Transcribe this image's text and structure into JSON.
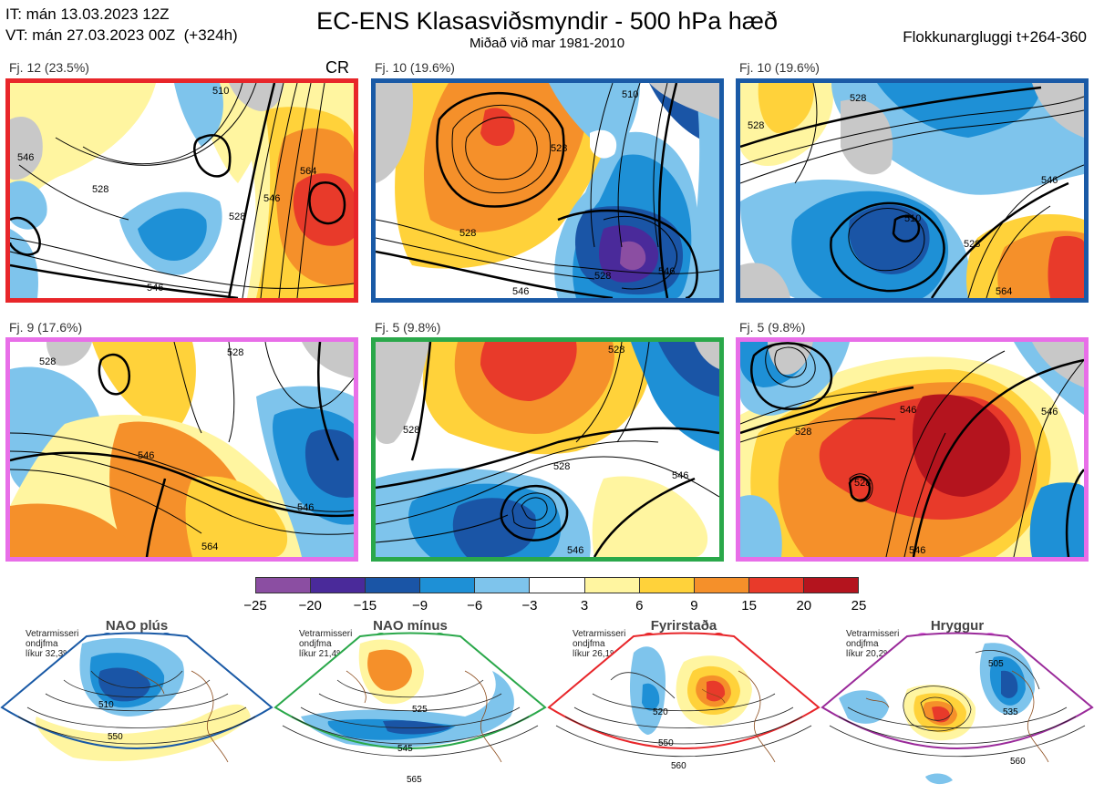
{
  "header": {
    "it_line": "IT: mán 13.03.2023 12Z",
    "vt_line": "VT: mán 27.03.2023 00Z  (+324h)",
    "title": "EC-ENS Klasasviðsmyndir - 500 hPa hæð",
    "subtitle": "Miðað við mar 1981-2010",
    "window": "Flokkunargluggi t+264-360"
  },
  "clusters": [
    {
      "label": "Fj. 12 (23.5%)",
      "tag": "CR",
      "border": "#e8262a",
      "contours": [
        "546",
        "528",
        "510",
        "564",
        "546",
        "528",
        "546"
      ]
    },
    {
      "label": "Fj. 10 (19.6%)",
      "tag": "",
      "border": "#1a5aa6",
      "contours": [
        "510",
        "528",
        "528",
        "546",
        "528",
        "546"
      ]
    },
    {
      "label": "Fj. 10 (19.6%)",
      "tag": "",
      "border": "#1a5aa6",
      "contours": [
        "528",
        "510",
        "546",
        "528",
        "564",
        "528"
      ]
    },
    {
      "label": "Fj. 9 (17.6%)",
      "tag": "",
      "border": "#e86ee8",
      "contours": [
        "528",
        "546",
        "546",
        "564",
        "528"
      ]
    },
    {
      "label": "Fj. 5 (9.8%)",
      "tag": "",
      "border": "#2aa84a",
      "contours": [
        "528",
        "528",
        "546",
        "546",
        "528"
      ]
    },
    {
      "label": "Fj. 5 (9.8%)",
      "tag": "",
      "border": "#e86ee8",
      "contours": [
        "546",
        "528",
        "528",
        "546",
        "546"
      ]
    }
  ],
  "legend": {
    "colors": [
      "#8b4ea2",
      "#4a2a9a",
      "#1a55a6",
      "#1e90d6",
      "#7ec4ec",
      "#ffffff",
      "#fff5a0",
      "#ffd23a",
      "#f5902a",
      "#e83a2a",
      "#b4141e"
    ],
    "ticks": [
      "−25",
      "−20",
      "−15",
      "−9",
      "−6",
      "−3",
      "3",
      "6",
      "9",
      "15",
      "20",
      "25"
    ]
  },
  "regimes": [
    {
      "name": "NAO plús",
      "prob": [
        "Vetrarmisseri",
        "ondjfma",
        "líkur 32,3%"
      ],
      "color": "#1a5aa6",
      "contours": [
        "510",
        "550"
      ]
    },
    {
      "name": "NAO mínus",
      "prob": [
        "Vetrarmisseri",
        "ondjfma",
        "líkur 21,4%"
      ],
      "color": "#2aa84a",
      "contours": [
        "525",
        "545",
        "565"
      ]
    },
    {
      "name": "Fyrirstaða",
      "prob": [
        "Vetrarmisseri",
        "ondjfma",
        "líkur 26,1%"
      ],
      "color": "#e8262a",
      "contours": [
        "520",
        "550",
        "560"
      ]
    },
    {
      "name": "Hryggur",
      "prob": [
        "Vetrarmisseri",
        "ondjfma",
        "líkur 20,2%"
      ],
      "color": "#9a2a9a",
      "contours": [
        "505",
        "535",
        "560"
      ]
    }
  ]
}
